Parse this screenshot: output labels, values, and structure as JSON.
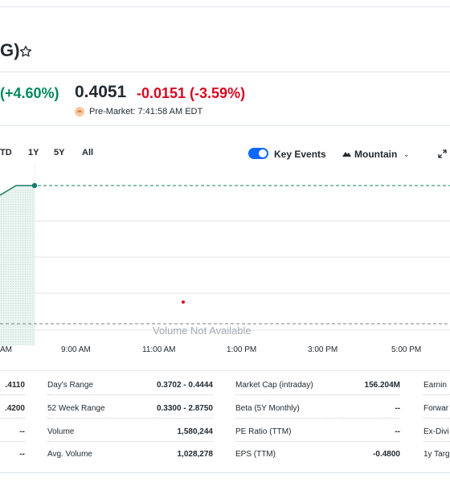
{
  "header": {
    "title_fragment": "G)",
    "watchlist_icon": "star-outline-icon"
  },
  "quote": {
    "regular_change_pct": "(+4.60%)",
    "premarket_price": "0.4051",
    "premarket_change": "-0.0151 (-3.59%)",
    "premarket_label": "Pre-Market: 7:41:58 AM EDT",
    "premarket_icon": "sunrise-icon",
    "colors": {
      "up": "#008a5c",
      "down": "#d60a22"
    }
  },
  "chart_controls": {
    "ranges": [
      "TD",
      "1Y",
      "5Y",
      "All"
    ],
    "key_events_label": "Key Events",
    "key_events_on": true,
    "chart_type_label": "Mountain",
    "chart_type_icon": "mountain-icon",
    "dropdown_icon": "chevron-down-icon",
    "expand_icon": "expand-icon"
  },
  "chart": {
    "volume_message": "Volume Not Available",
    "x_ticks": [
      "AM",
      "9:00 AM",
      "11:00 AM",
      "1:00 PM",
      "3:00 PM",
      "5:00 PM"
    ],
    "accent_color": "#1a7c63"
  },
  "stats": {
    "col1_values": [
      ".4110",
      ".4200",
      "--",
      "--"
    ],
    "col2": [
      {
        "label": "Day's Range",
        "value": "0.3702 - 0.4444"
      },
      {
        "label": "52 Week Range",
        "value": "0.3300 - 2.8750"
      },
      {
        "label": "Volume",
        "value": "1,580,244"
      },
      {
        "label": "Avg. Volume",
        "value": "1,028,278"
      }
    ],
    "col3": [
      {
        "label": "Market Cap (intraday)",
        "value": "156.204M"
      },
      {
        "label": "Beta (5Y Monthly)",
        "value": "--"
      },
      {
        "label": "PE Ratio (TTM)",
        "value": "--"
      },
      {
        "label": "EPS (TTM)",
        "value": "-0.4800"
      }
    ],
    "col4_labels": [
      "Earnin",
      "Forwar",
      "Ex-Divi",
      "1y Targ"
    ]
  }
}
